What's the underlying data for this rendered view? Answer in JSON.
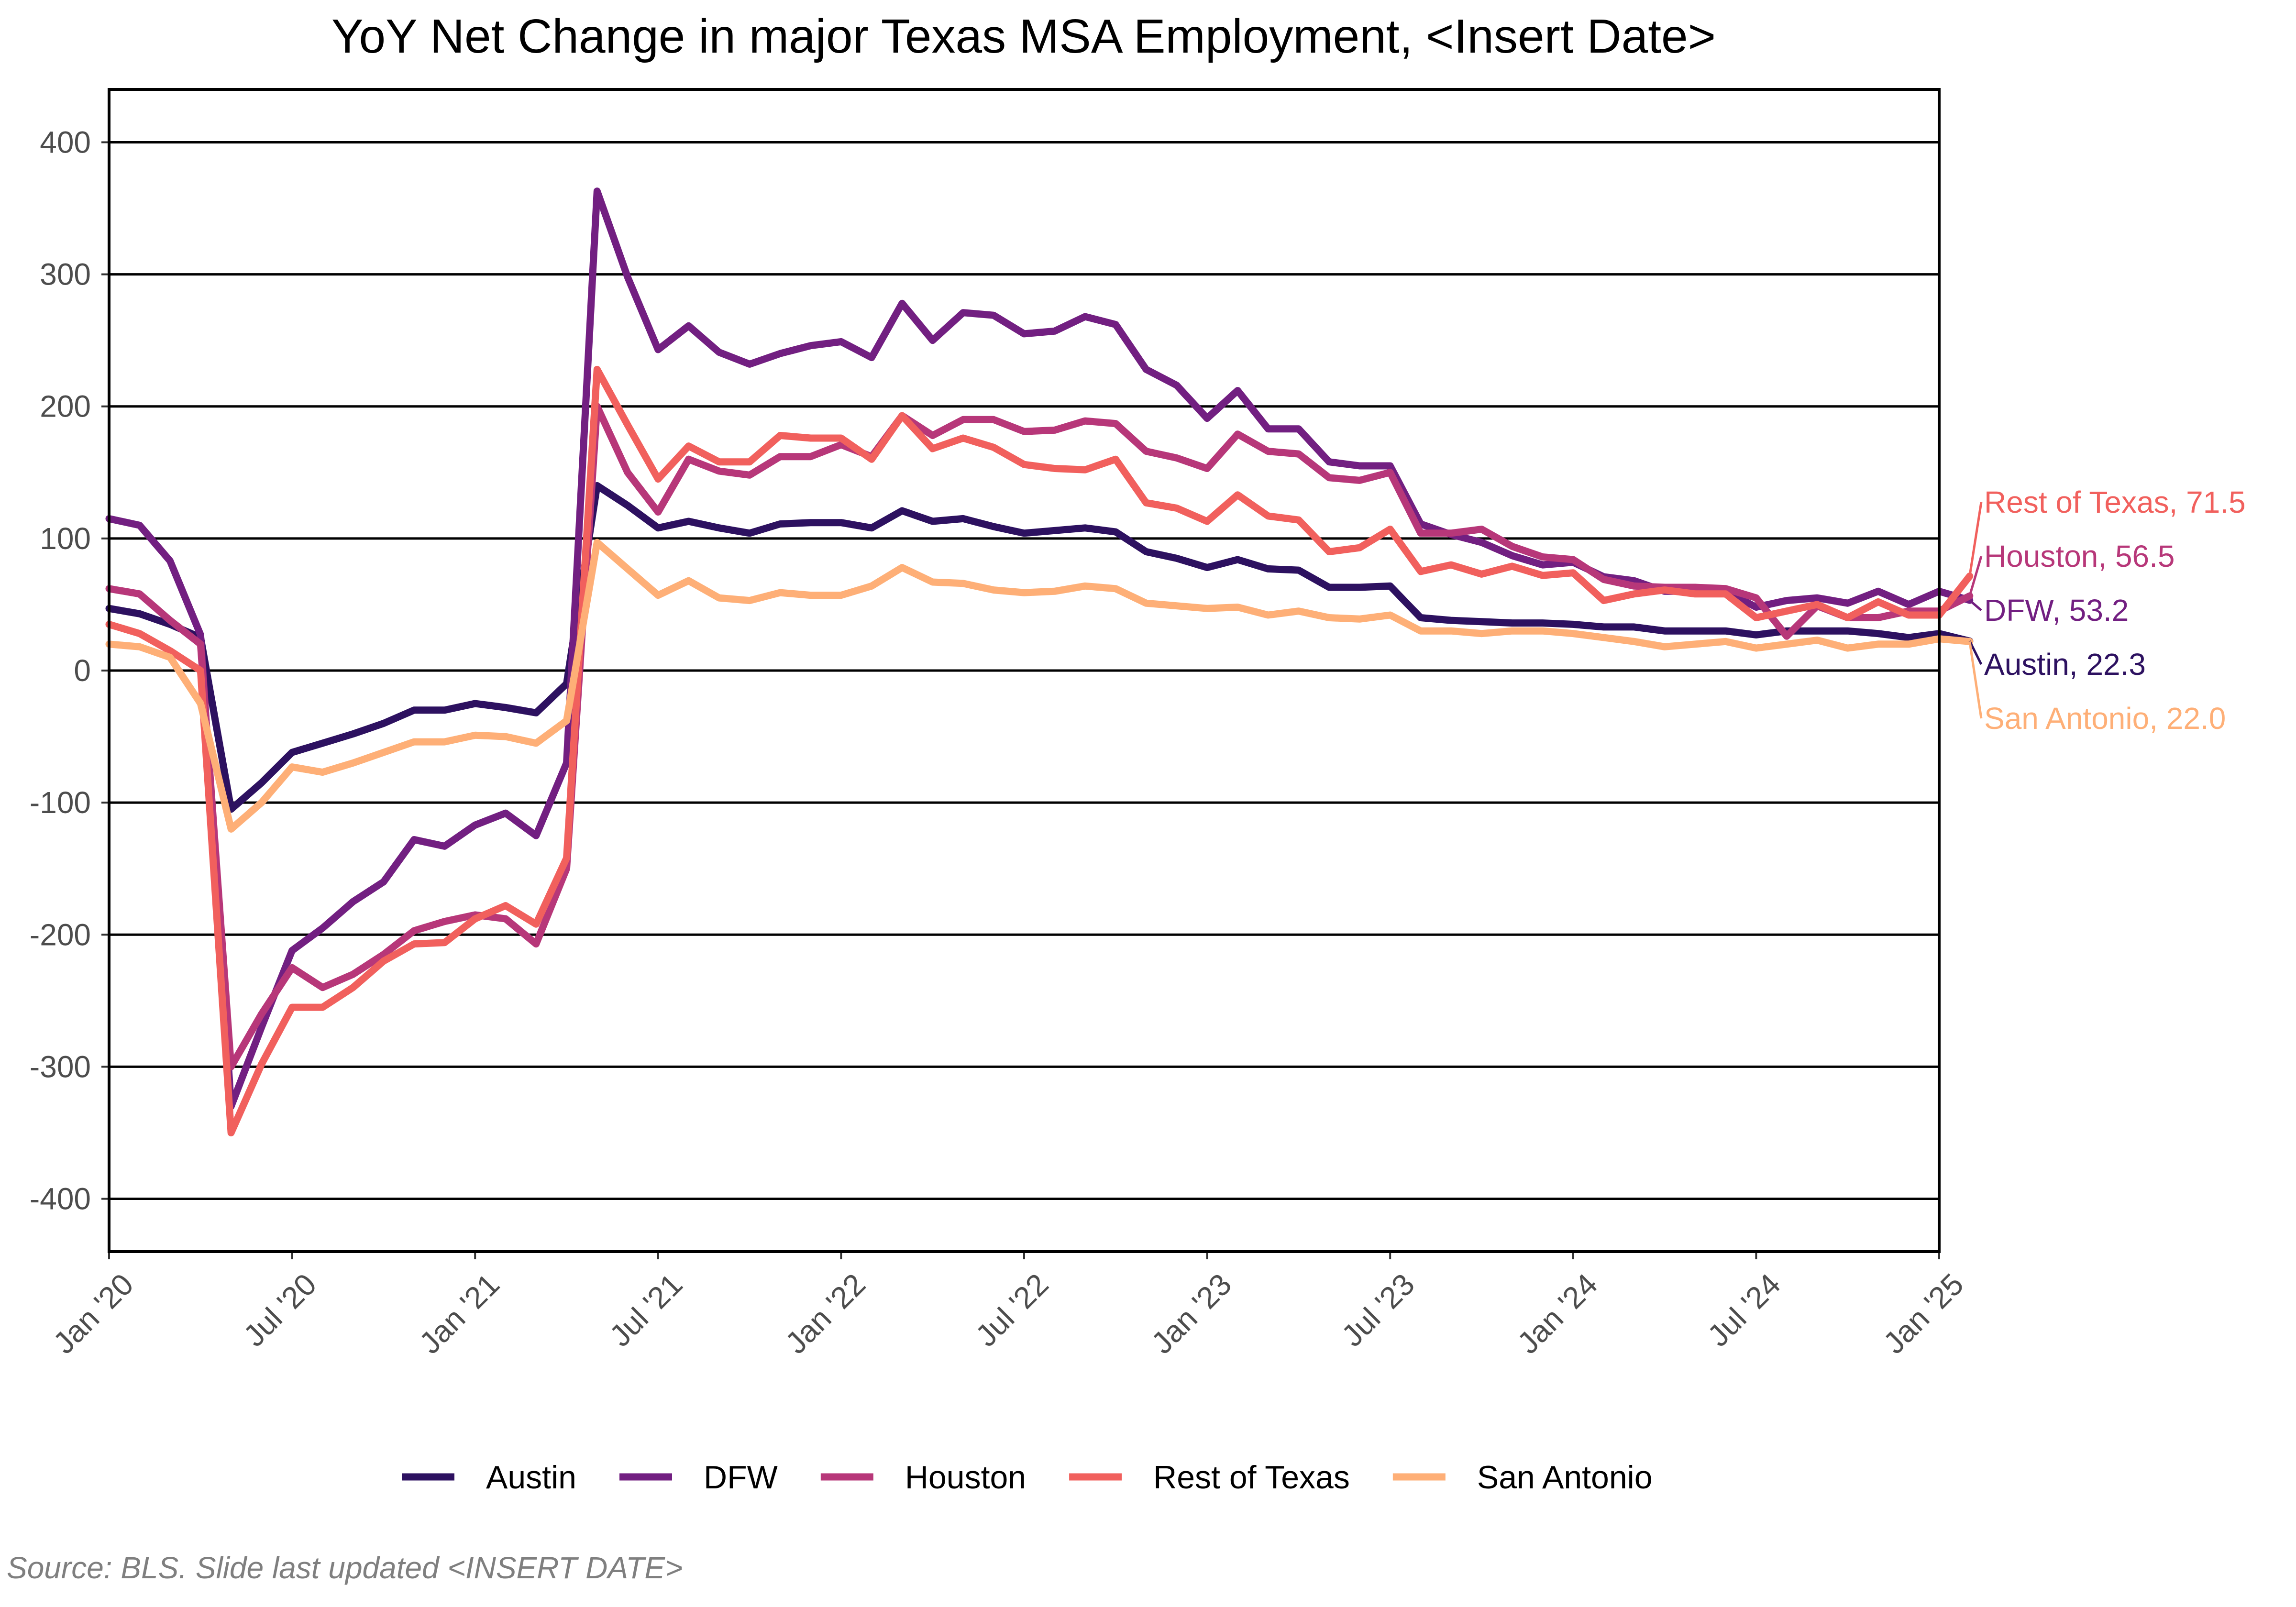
{
  "chart_data": {
    "type": "line",
    "title": "YoY Net Change in major Texas MSA Employment, <Insert Date>",
    "xlabel": "",
    "ylabel": "",
    "ylim": [
      -440,
      440
    ],
    "yticks": [
      -400,
      -300,
      -200,
      -100,
      0,
      100,
      200,
      300,
      400
    ],
    "ytick_labels": [
      "-400",
      "-300",
      "-200",
      "-100",
      "0",
      "100",
      "200",
      "300",
      "400"
    ],
    "x_start": "Jan '20",
    "x_end": "Jan '25",
    "xticks": [
      0,
      6,
      12,
      18,
      24,
      30,
      36,
      42,
      48,
      54,
      60
    ],
    "xtick_labels": [
      "Jan '20",
      "Jul '20",
      "Jan '21",
      "Jul '21",
      "Jan '22",
      "Jul '22",
      "Jan '23",
      "Jul '23",
      "Jan '24",
      "Jul '24",
      "Jan '25"
    ],
    "grid": "horizontal",
    "legend_position": "bottom",
    "series": [
      {
        "name": "Austin",
        "color": "#2d1160",
        "end_label": "Austin,  22.3",
        "values": [
          47,
          43,
          35,
          25,
          -105,
          -85,
          -62,
          -55,
          -48,
          -40,
          -30,
          -30,
          -25,
          -28,
          -32,
          -10,
          140,
          125,
          108,
          113,
          108,
          104,
          111,
          112,
          112,
          108,
          121,
          113,
          115,
          109,
          104,
          106,
          108,
          105,
          90,
          85,
          78,
          84,
          77,
          76,
          63,
          63,
          64,
          40,
          38,
          37,
          36,
          36,
          35,
          33,
          33,
          30,
          30,
          30,
          27,
          30,
          30,
          30,
          28,
          25,
          28,
          22.3
        ]
      },
      {
        "name": "DFW",
        "color": "#721f81",
        "end_label": "DFW,  53.2",
        "values": [
          115,
          110,
          83,
          27,
          -330,
          -270,
          -212,
          -195,
          -175,
          -160,
          -128,
          -133,
          -117,
          -108,
          -125,
          -70,
          363,
          298,
          243,
          261,
          241,
          232,
          240,
          246,
          249,
          237,
          278,
          250,
          271,
          269,
          255,
          257,
          268,
          262,
          228,
          216,
          191,
          212,
          183,
          183,
          158,
          155,
          155,
          111,
          103,
          97,
          87,
          80,
          82,
          71,
          68,
          60,
          60,
          60,
          48,
          53,
          55,
          51,
          60,
          50,
          60,
          53.2
        ]
      },
      {
        "name": "Houston",
        "color": "#b73779",
        "end_label": "Houston,  56.5",
        "values": [
          62,
          58,
          38,
          20,
          -300,
          -260,
          -225,
          -240,
          -230,
          -215,
          -197,
          -190,
          -185,
          -188,
          -207,
          -150,
          200,
          150,
          120,
          160,
          151,
          148,
          162,
          162,
          171,
          162,
          193,
          178,
          190,
          190,
          181,
          182,
          189,
          187,
          166,
          161,
          153,
          179,
          166,
          164,
          146,
          144,
          150,
          104,
          104,
          107,
          94,
          86,
          84,
          69,
          64,
          63,
          63,
          62,
          55,
          26,
          49,
          40,
          40,
          45,
          45,
          56.5
        ]
      },
      {
        "name": "Rest of Texas",
        "color": "#f1605d",
        "end_label": "Rest of Texas,  71.5",
        "values": [
          35,
          28,
          15,
          0,
          -350,
          -298,
          -255,
          -255,
          -240,
          -220,
          -207,
          -206,
          -188,
          -178,
          -192,
          -142,
          228,
          186,
          145,
          170,
          158,
          158,
          178,
          176,
          176,
          160,
          193,
          168,
          176,
          169,
          156,
          153,
          152,
          160,
          127,
          123,
          113,
          133,
          117,
          114,
          90,
          93,
          107,
          75,
          80,
          73,
          79,
          72,
          74,
          53,
          58,
          61,
          58,
          58,
          40,
          45,
          50,
          40,
          52,
          42,
          42,
          71.5
        ]
      },
      {
        "name": "San Antonio",
        "color": "#feaf77",
        "end_label": "San Antonio,  22.0",
        "values": [
          20,
          18,
          10,
          -25,
          -120,
          -100,
          -73,
          -77,
          -70,
          -62,
          -54,
          -54,
          -49,
          -50,
          -55,
          -38,
          97,
          77,
          57,
          68,
          55,
          53,
          59,
          57,
          57,
          64,
          78,
          67,
          66,
          61,
          59,
          60,
          64,
          62,
          51,
          49,
          47,
          48,
          42,
          45,
          40,
          39,
          42,
          30,
          30,
          28,
          30,
          30,
          28,
          25,
          22,
          18,
          20,
          22,
          17,
          20,
          23,
          17,
          20,
          20,
          24,
          22.0
        ]
      }
    ]
  },
  "source_note": "Source: BLS. Slide last updated <INSERT DATE>"
}
